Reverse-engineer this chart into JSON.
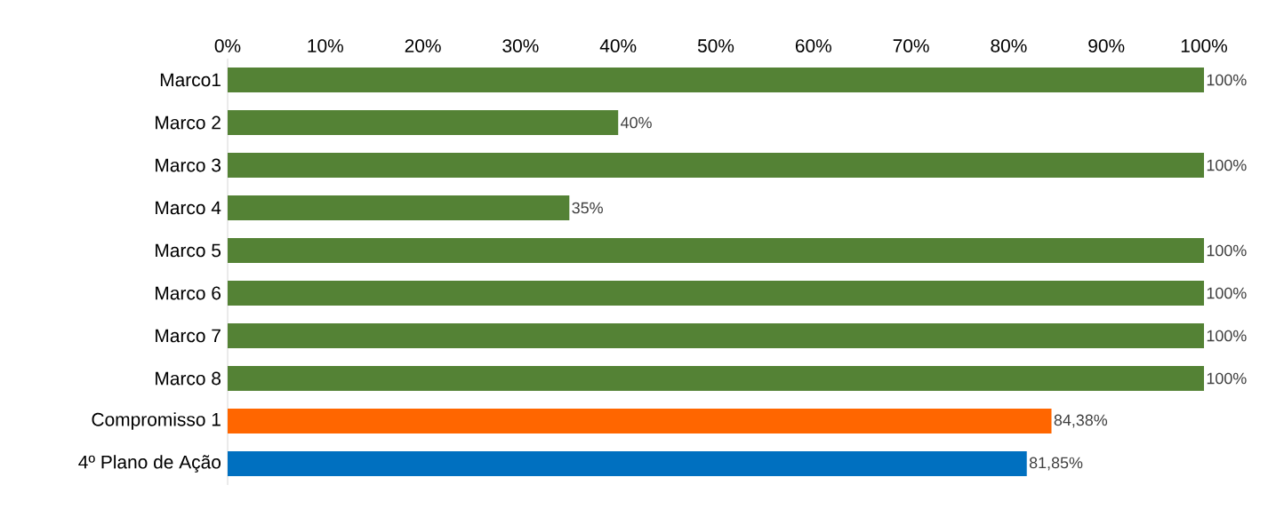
{
  "chart_data": {
    "type": "bar",
    "orientation": "horizontal",
    "categories": [
      "Marco1",
      "Marco 2",
      "Marco 3",
      "Marco 4",
      "Marco 5",
      "Marco 6",
      "Marco 7",
      "Marco 8",
      "Compromisso 1",
      "4º Plano de Ação"
    ],
    "values": [
      100,
      40,
      100,
      35,
      100,
      100,
      100,
      100,
      84.38,
      81.85
    ],
    "colors": [
      "#548235",
      "#548235",
      "#548235",
      "#548235",
      "#548235",
      "#548235",
      "#548235",
      "#548235",
      "#ff6600",
      "#0070c0"
    ],
    "value_labels": [
      "100%",
      "40%",
      "100%",
      "35%",
      "100%",
      "100%",
      "100%",
      "100%",
      "84,38%",
      "81,85%"
    ],
    "xlim": [
      0,
      100
    ],
    "xticks": [
      {
        "value": 0,
        "label": "0%"
      },
      {
        "value": 10,
        "label": "10%"
      },
      {
        "value": 20,
        "label": "20%"
      },
      {
        "value": 30,
        "label": "30%"
      },
      {
        "value": 40,
        "label": "40%"
      },
      {
        "value": 50,
        "label": "50%"
      },
      {
        "value": 60,
        "label": "60%"
      },
      {
        "value": 70,
        "label": "70%"
      },
      {
        "value": 80,
        "label": "80%"
      },
      {
        "value": 90,
        "label": "90%"
      },
      {
        "value": 100,
        "label": "100%"
      }
    ],
    "grid": false
  }
}
